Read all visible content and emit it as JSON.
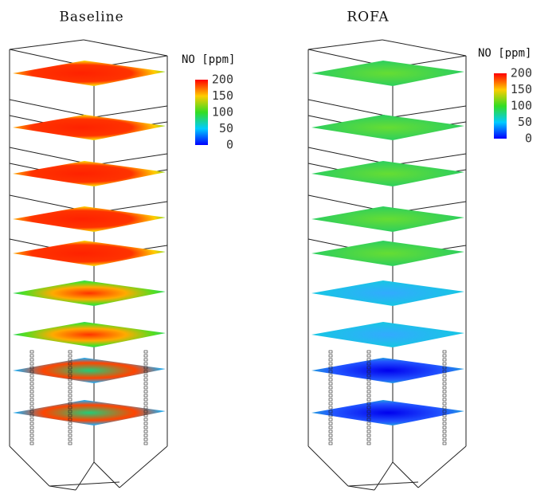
{
  "panels": [
    {
      "title": "Baseline",
      "colorbar": {
        "label": "NO [ppm]",
        "ticks": [
          200,
          150,
          100,
          50,
          0
        ]
      }
    },
    {
      "title": "ROFA",
      "colorbar": {
        "label": "NO [ppm]",
        "ticks": [
          200,
          150,
          100,
          50,
          0
        ]
      }
    }
  ]
}
